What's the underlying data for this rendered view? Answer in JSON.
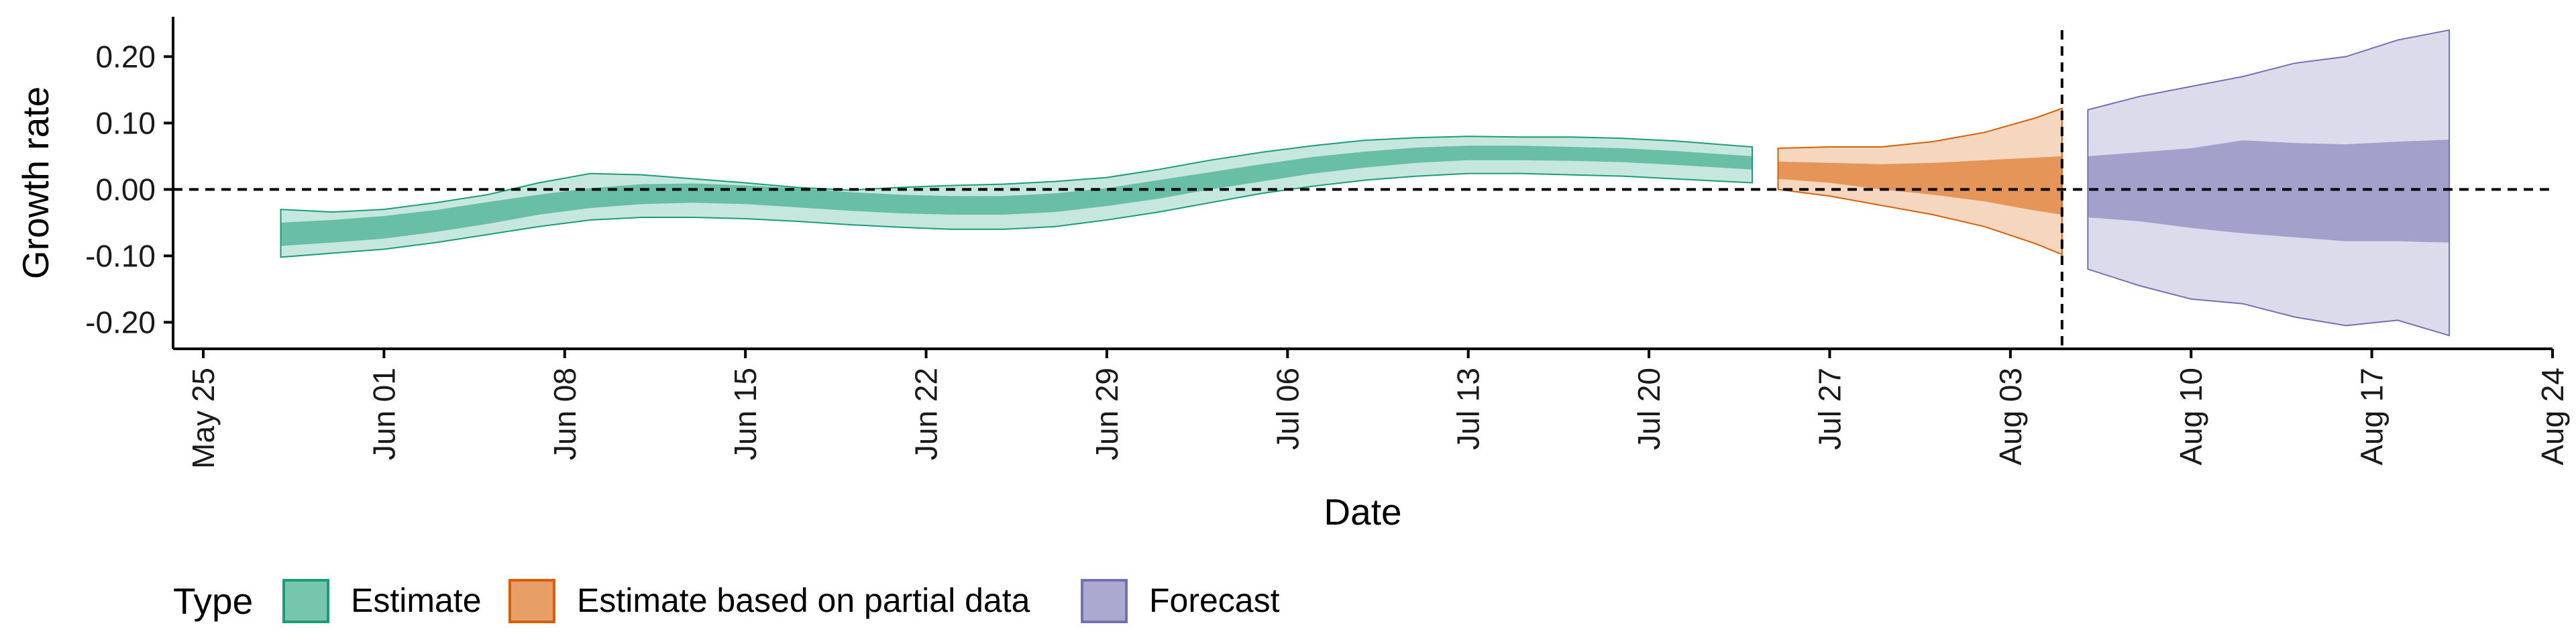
{
  "chart_data": {
    "type": "area",
    "xlabel": "Date",
    "ylabel": "Growth rate",
    "ylim": [
      -0.24,
      0.26
    ],
    "xlim": [
      "2020-05-25",
      "2020-08-24"
    ],
    "x_ticks": [
      "2020-05-25",
      "2020-06-01",
      "2020-06-08",
      "2020-06-15",
      "2020-06-22",
      "2020-06-29",
      "2020-07-06",
      "2020-07-13",
      "2020-07-20",
      "2020-07-27",
      "2020-08-03",
      "2020-08-10",
      "2020-08-17",
      "2020-08-24"
    ],
    "x_tick_labels": [
      "May 25",
      "Jun 01",
      "Jun 08",
      "Jun 15",
      "Jun 22",
      "Jun 29",
      "Jul 06",
      "Jul 13",
      "Jul 20",
      "Jul 27",
      "Aug 03",
      "Aug 10",
      "Aug 17",
      "Aug 24"
    ],
    "y_ticks": [
      -0.2,
      -0.1,
      0.0,
      0.1,
      0.2
    ],
    "y_tick_labels": [
      "-0.20",
      "-0.10",
      "0.00",
      "0.10",
      "0.20"
    ],
    "hline": 0,
    "vline": "2020-08-05",
    "grid": false,
    "legend": {
      "title": "Type",
      "position": "bottom-left",
      "entries": [
        {
          "label": "Estimate",
          "color": "#1b9e77"
        },
        {
          "label": "Estimate based on partial data",
          "color": "#d95f02"
        },
        {
          "label": "Forecast",
          "color": "#7570b3"
        }
      ]
    },
    "series": [
      {
        "name": "Estimate",
        "color": "#1b9e77",
        "x": [
          "2020-05-28",
          "2020-05-30",
          "2020-06-01",
          "2020-06-03",
          "2020-06-05",
          "2020-06-07",
          "2020-06-09",
          "2020-06-11",
          "2020-06-13",
          "2020-06-15",
          "2020-06-17",
          "2020-06-19",
          "2020-06-21",
          "2020-06-23",
          "2020-06-25",
          "2020-06-27",
          "2020-06-29",
          "2020-07-01",
          "2020-07-03",
          "2020-07-05",
          "2020-07-07",
          "2020-07-09",
          "2020-07-11",
          "2020-07-13",
          "2020-07-15",
          "2020-07-17",
          "2020-07-19",
          "2020-07-21",
          "2020-07-24"
        ],
        "lower90": [
          -0.102,
          -0.096,
          -0.09,
          -0.08,
          -0.068,
          -0.056,
          -0.046,
          -0.042,
          -0.042,
          -0.044,
          -0.048,
          -0.053,
          -0.057,
          -0.06,
          -0.06,
          -0.056,
          -0.046,
          -0.034,
          -0.02,
          -0.006,
          0.005,
          0.014,
          0.02,
          0.024,
          0.024,
          0.022,
          0.02,
          0.016,
          0.01
        ],
        "lower50": [
          -0.085,
          -0.08,
          -0.074,
          -0.064,
          -0.052,
          -0.038,
          -0.028,
          -0.022,
          -0.02,
          -0.022,
          -0.027,
          -0.032,
          -0.036,
          -0.038,
          -0.038,
          -0.034,
          -0.025,
          -0.014,
          0,
          0.012,
          0.024,
          0.033,
          0.04,
          0.044,
          0.044,
          0.043,
          0.041,
          0.037,
          0.03
        ],
        "median": [
          -0.068,
          -0.063,
          -0.057,
          -0.048,
          -0.036,
          -0.024,
          -0.014,
          -0.008,
          -0.006,
          -0.008,
          -0.013,
          -0.018,
          -0.022,
          -0.024,
          -0.024,
          -0.02,
          -0.012,
          0,
          0.013,
          0.025,
          0.036,
          0.045,
          0.051,
          0.055,
          0.055,
          0.053,
          0.051,
          0.047,
          0.04
        ],
        "upper50": [
          -0.05,
          -0.046,
          -0.04,
          -0.031,
          -0.019,
          -0.008,
          0.002,
          0.008,
          0.009,
          0.006,
          0.002,
          -0.004,
          -0.008,
          -0.01,
          -0.01,
          -0.006,
          0.002,
          0.014,
          0.026,
          0.038,
          0.049,
          0.057,
          0.063,
          0.066,
          0.066,
          0.064,
          0.062,
          0.058,
          0.05
        ],
        "upper90": [
          -0.03,
          -0.034,
          -0.03,
          -0.02,
          -0.008,
          0.01,
          0.024,
          0.022,
          0.016,
          0.01,
          0.003,
          -0.001,
          0.003,
          0.006,
          0.008,
          0.012,
          0.018,
          0.03,
          0.044,
          0.056,
          0.066,
          0.074,
          0.078,
          0.08,
          0.079,
          0.079,
          0.077,
          0.073,
          0.064
        ]
      },
      {
        "name": "Estimate based on partial data",
        "color": "#d95f02",
        "x": [
          "2020-07-25",
          "2020-07-27",
          "2020-07-29",
          "2020-07-31",
          "2020-08-02",
          "2020-08-04",
          "2020-08-05"
        ],
        "lower90": [
          0.0,
          -0.01,
          -0.024,
          -0.038,
          -0.056,
          -0.082,
          -0.098
        ],
        "lower50": [
          0.016,
          0.01,
          0.0,
          -0.008,
          -0.018,
          -0.032,
          -0.038
        ],
        "upper50": [
          0.042,
          0.04,
          0.038,
          0.04,
          0.044,
          0.048,
          0.05
        ],
        "upper90": [
          0.062,
          0.064,
          0.064,
          0.072,
          0.086,
          0.108,
          0.122
        ]
      },
      {
        "name": "Forecast",
        "color": "#7570b3",
        "x": [
          "2020-08-06",
          "2020-08-08",
          "2020-08-10",
          "2020-08-12",
          "2020-08-14",
          "2020-08-16",
          "2020-08-18",
          "2020-08-20"
        ],
        "lower90": [
          -0.12,
          -0.145,
          -0.165,
          -0.172,
          -0.192,
          -0.205,
          -0.197,
          -0.22
        ],
        "lower50": [
          -0.042,
          -0.048,
          -0.058,
          -0.066,
          -0.072,
          -0.078,
          -0.078,
          -0.08
        ],
        "upper50": [
          0.05,
          0.056,
          0.062,
          0.074,
          0.07,
          0.068,
          0.072,
          0.075
        ],
        "upper90": [
          0.12,
          0.14,
          0.155,
          0.17,
          0.19,
          0.2,
          0.225,
          0.24
        ]
      }
    ]
  }
}
